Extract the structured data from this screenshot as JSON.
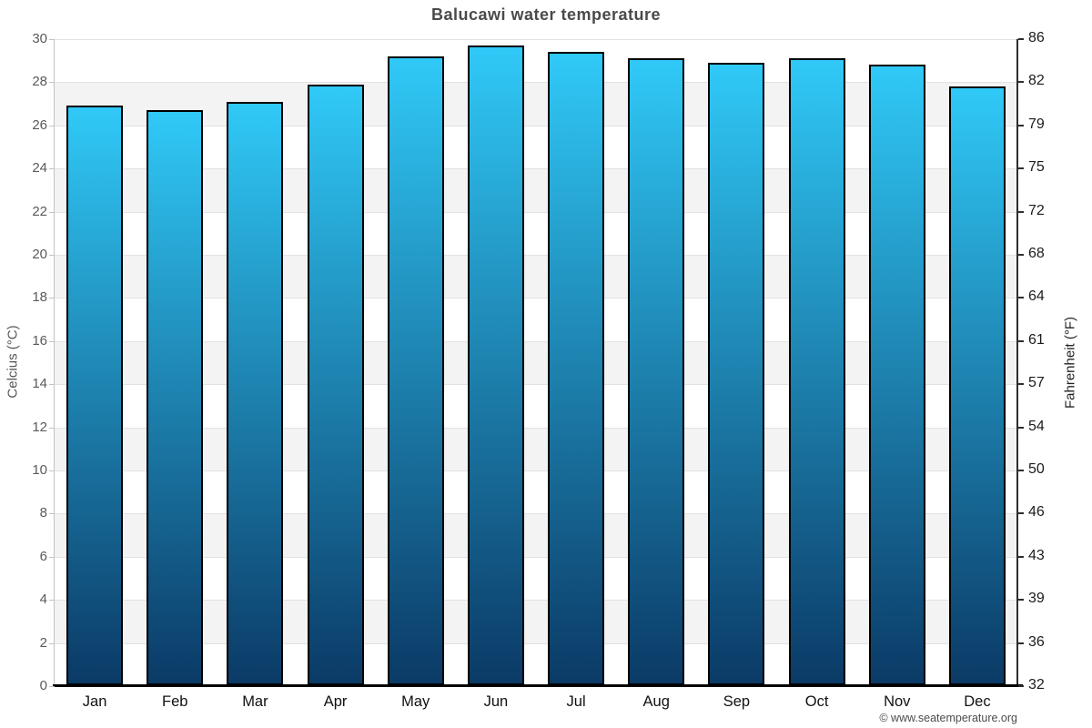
{
  "title": "Balucawi water temperature",
  "footer": "© www.seatemperature.org",
  "axes": {
    "left_title": "Celcius (°C)",
    "right_title": "Fahrenheit (°F)",
    "celsius_tick_labels": [
      "30",
      "28",
      "26",
      "24",
      "22",
      "20",
      "18",
      "16",
      "14",
      "12",
      "10",
      "8",
      "6",
      "4",
      "2",
      "0"
    ],
    "fahrenheit_tick_labels": [
      "86",
      "82",
      "79",
      "75",
      "72",
      "68",
      "64",
      "61",
      "57",
      "54",
      "50",
      "46",
      "43",
      "39",
      "36",
      "32"
    ]
  },
  "chart_data": {
    "type": "bar",
    "title": "Balucawi water temperature",
    "categories": [
      "Jan",
      "Feb",
      "Mar",
      "Apr",
      "May",
      "Jun",
      "Jul",
      "Aug",
      "Sep",
      "Oct",
      "Nov",
      "Dec"
    ],
    "values": [
      26.9,
      26.7,
      27.1,
      27.9,
      29.2,
      29.7,
      29.4,
      29.1,
      28.9,
      29.1,
      28.8,
      27.8
    ],
    "unit": "°C",
    "xlabel": "",
    "ylabel": "Celcius (°C)",
    "ylabel_secondary": "Fahrenheit (°F)",
    "ylim": [
      0,
      30
    ],
    "ytick_step": 2,
    "ylim_secondary_labels": [
      32,
      86
    ],
    "grid": "alternating horizontal bands every 2°C",
    "legend": "none",
    "colors": {
      "bar_gradient_top": "#30C9F7",
      "bar_gradient_bottom": "#0B3A66",
      "bar_border": "#000000",
      "band_fill": "#F3F3F3",
      "gridline": "#E2E2E2",
      "title_text": "#4A4A4A"
    }
  }
}
